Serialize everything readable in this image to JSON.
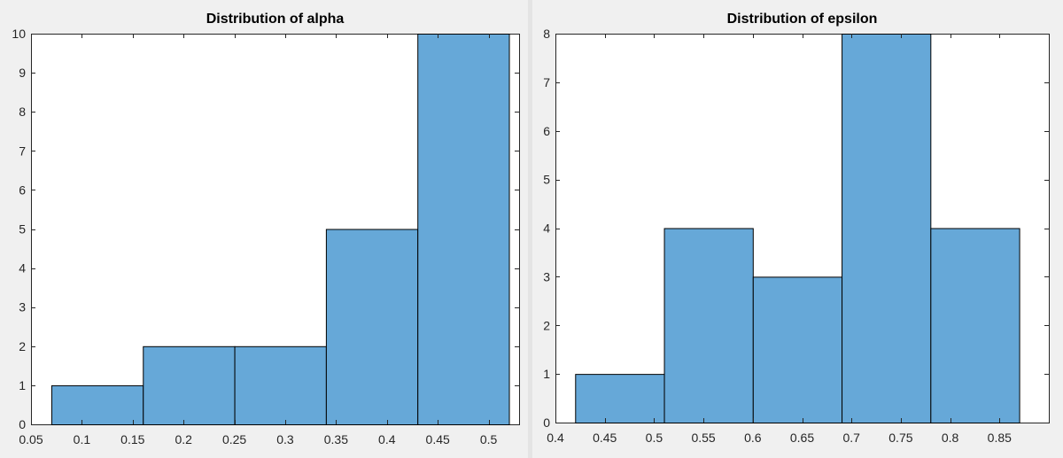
{
  "chart_data": [
    {
      "type": "bar",
      "title": "Distribution of alpha",
      "xlabel": "",
      "ylabel": "",
      "bin_edges": [
        0.07,
        0.16,
        0.25,
        0.34,
        0.43,
        0.52
      ],
      "values": [
        1,
        2,
        2,
        5,
        10
      ],
      "xlim": [
        0.05,
        0.53
      ],
      "ylim": [
        0,
        10
      ],
      "xticks": [
        0.05,
        0.1,
        0.15,
        0.2,
        0.25,
        0.3,
        0.35,
        0.4,
        0.45,
        0.5
      ],
      "xtick_labels": [
        "0.05",
        "0.1",
        "0.15",
        "0.2",
        "0.25",
        "0.3",
        "0.35",
        "0.4",
        "0.45",
        "0.5"
      ],
      "yticks": [
        0,
        1,
        2,
        3,
        4,
        5,
        6,
        7,
        8,
        9,
        10
      ],
      "ytick_labels": [
        "0",
        "1",
        "2",
        "3",
        "4",
        "5",
        "6",
        "7",
        "8",
        "9",
        "10"
      ],
      "grid": false,
      "bar_color": "#66a8d8"
    },
    {
      "type": "bar",
      "title": "Distribution of epsilon",
      "xlabel": "",
      "ylabel": "",
      "bin_edges": [
        0.42,
        0.51,
        0.6,
        0.69,
        0.78,
        0.87
      ],
      "values": [
        1,
        4,
        3,
        8,
        4
      ],
      "xlim": [
        0.4,
        0.9
      ],
      "ylim": [
        0,
        8
      ],
      "xticks": [
        0.4,
        0.45,
        0.5,
        0.55,
        0.6,
        0.65,
        0.7,
        0.75,
        0.8,
        0.85
      ],
      "xtick_labels": [
        "0.4",
        "0.45",
        "0.5",
        "0.55",
        "0.6",
        "0.65",
        "0.7",
        "0.75",
        "0.8",
        "0.85"
      ],
      "yticks": [
        0,
        1,
        2,
        3,
        4,
        5,
        6,
        7,
        8
      ],
      "ytick_labels": [
        "0",
        "1",
        "2",
        "3",
        "4",
        "5",
        "6",
        "7",
        "8"
      ],
      "grid": false,
      "bar_color": "#66a8d8"
    }
  ]
}
